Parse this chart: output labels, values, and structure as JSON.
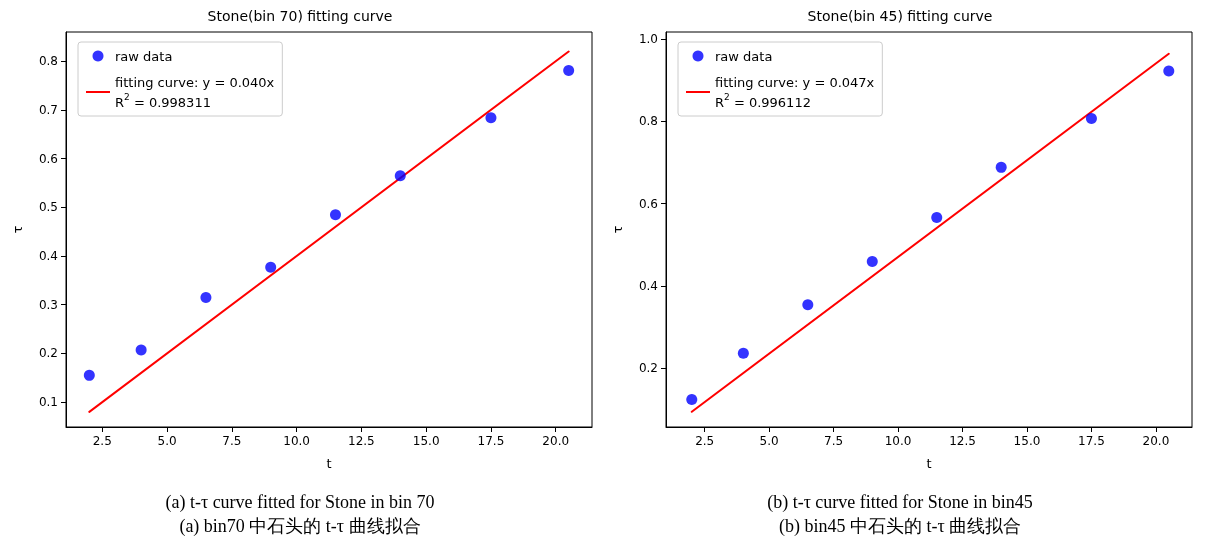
{
  "chart_data": [
    {
      "type": "scatter",
      "title": "Stone(bin 70) fitting curve",
      "xlabel": "t",
      "ylabel": "τ",
      "xlim": [
        1.1,
        21.4
      ],
      "ylim": [
        0.049,
        0.86
      ],
      "xticks": [
        {
          "value": 2.5,
          "label": "2.5"
        },
        {
          "value": 5,
          "label": "5.0"
        },
        {
          "value": 7.5,
          "label": "7.5"
        },
        {
          "value": 10,
          "label": "10.0"
        },
        {
          "value": 12.5,
          "label": "12.5"
        },
        {
          "value": 15,
          "label": "15.0"
        },
        {
          "value": 17.5,
          "label": "17.5"
        },
        {
          "value": 20,
          "label": "20.0"
        }
      ],
      "yticks": [
        0.1,
        0.2,
        0.3,
        0.4,
        0.5,
        0.6,
        0.7,
        0.8
      ],
      "grid": false,
      "legend": "top left",
      "marker": "circle",
      "series": [
        {
          "name": "raw data",
          "color": "#0000ff",
          "x": [
            2,
            4,
            6.5,
            9,
            11.5,
            14,
            17.5,
            20.5
          ],
          "values": [
            0.155,
            0.207,
            0.315,
            0.377,
            0.485,
            0.565,
            0.684,
            0.781
          ]
        },
        {
          "name": "fitting curve: y = 0.040x\nR$^{2}$ = 0.998311",
          "type": "line",
          "marker": "none",
          "line_style": "solid",
          "color": "#ff0000",
          "x": [
            2,
            20.5
          ],
          "values": [
            0.08,
            0.82
          ]
        }
      ],
      "annotations": [
        "(a) t-τ curve fitted for Stone in bin 70",
        "(a) bin70 中石头的 t-τ 曲线拟合"
      ]
    },
    {
      "type": "scatter",
      "title": "Stone(bin 45) fitting curve",
      "xlabel": "t",
      "ylabel": "τ",
      "xlim": [
        1.0,
        21.4
      ],
      "ylim": [
        0.057,
        1.017
      ],
      "xticks": [
        {
          "value": 2.5,
          "label": "2.5"
        },
        {
          "value": 5,
          "label": "5.0"
        },
        {
          "value": 7.5,
          "label": "7.5"
        },
        {
          "value": 10,
          "label": "10.0"
        },
        {
          "value": 12.5,
          "label": "12.5"
        },
        {
          "value": 15,
          "label": "15.0"
        },
        {
          "value": 17.5,
          "label": "17.5"
        },
        {
          "value": 20,
          "label": "20.0"
        }
      ],
      "yticks": [
        0.2,
        0.4,
        0.6,
        0.8,
        {
          "value": 1,
          "label": "1.0"
        }
      ],
      "grid": false,
      "legend": "top left",
      "marker": "circle",
      "series": [
        {
          "name": "raw data",
          "color": "#0000ff",
          "x": [
            2,
            4,
            6.5,
            9,
            11.5,
            14,
            17.5,
            20.5
          ],
          "values": [
            0.124,
            0.236,
            0.354,
            0.459,
            0.566,
            0.688,
            0.807,
            0.922
          ]
        },
        {
          "name": "fitting curve: y = 0.047x\nR$^{2}$ = 0.996112",
          "type": "line",
          "marker": "none",
          "line_style": "solid",
          "color": "#ff0000",
          "x": [
            2,
            20.5
          ],
          "values": [
            0.094,
            0.964
          ]
        }
      ],
      "annotations": [
        "(b) t-τ curve fitted for Stone in bin45",
        "(b) bin45 中石头的 t-τ 曲线拟合"
      ]
    }
  ]
}
